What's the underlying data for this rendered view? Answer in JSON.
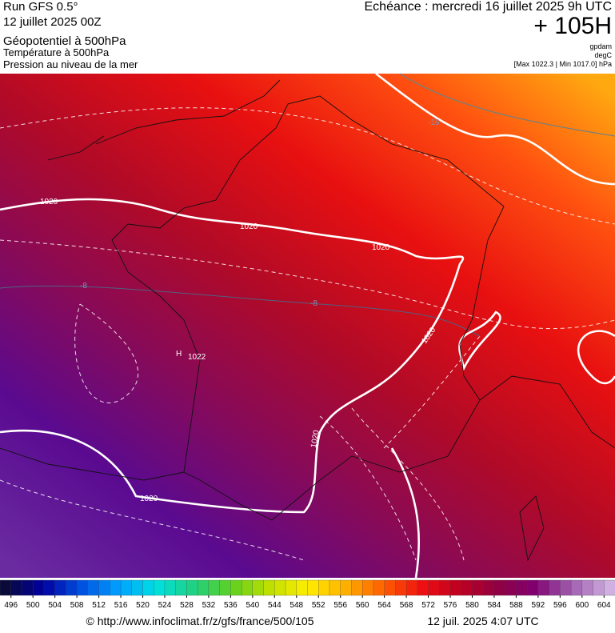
{
  "header": {
    "run": "Run GFS 0.5°",
    "date": "12 juillet 2025 00Z",
    "param1": "Géopotentiel à 500hPa",
    "param2": "Température à 500hPa",
    "param3": "Pression au niveau de la mer",
    "echeance": "Echéance : mercredi 16 juillet 2025 9h UTC",
    "lead": "+ 105H",
    "unit1": "gpdam",
    "unit2": "degC",
    "minmax": "[Max 1022.3 | Min 1017.0] hPa"
  },
  "map": {
    "isobar_labels": [
      "1020",
      "1020",
      "1020",
      "1020",
      "1020",
      "1020"
    ],
    "high_label": "H",
    "high_value": "1022",
    "temp_labels": [
      "-16",
      "-8",
      "-8"
    ]
  },
  "colorbar": {
    "ticks": [
      496,
      500,
      504,
      508,
      512,
      516,
      520,
      524,
      528,
      532,
      536,
      540,
      544,
      548,
      552,
      556,
      560,
      564,
      568,
      572,
      576,
      580,
      584,
      588,
      592,
      596,
      600,
      604
    ],
    "colors": [
      "#0a0a3a",
      "#0000a0",
      "#0050e0",
      "#00a0ff",
      "#00e0e0",
      "#20d080",
      "#60d020",
      "#c0e000",
      "#ffee00",
      "#ffb000",
      "#ff6000",
      "#f01010",
      "#c00020",
      "#900040",
      "#800070",
      "#a060b0",
      "#d0b0e0"
    ]
  },
  "footer": {
    "url": "© http://www.infoclimat.fr/z/gfs/france/500/105",
    "time": "12 juil. 2025  4:07 UTC"
  }
}
